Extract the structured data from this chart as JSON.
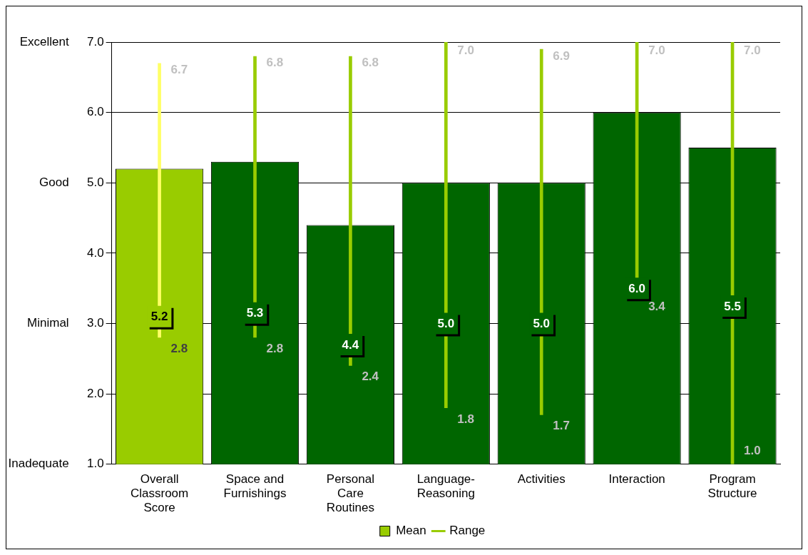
{
  "chart_data": {
    "type": "bar",
    "categories": [
      "Overall Classroom Score",
      "Space and Furnishings",
      "Personal Care Routines",
      "Language-Reasoning",
      "Activities",
      "Interaction",
      "Program Structure"
    ],
    "series": [
      {
        "name": "Mean",
        "colors": [
          "#99cc00",
          "#006600",
          "#006600",
          "#006600",
          "#006600",
          "#006600",
          "#006600"
        ],
        "values": [
          5.2,
          5.3,
          4.4,
          5.0,
          5.0,
          6.0,
          5.5
        ],
        "value_labels": [
          "5.2",
          "5.3",
          "4.4",
          "5.0",
          "5.0",
          "6.0",
          "5.5"
        ]
      },
      {
        "name": "Range",
        "colors": [
          "#ffff66",
          "#99cc00",
          "#99cc00",
          "#99cc00",
          "#99cc00",
          "#99cc00",
          "#99cc00"
        ],
        "base": [
          2.8,
          2.8,
          2.4,
          1.8,
          1.7,
          3.4,
          1.0
        ],
        "values": [
          3.9,
          4.0,
          4.4,
          5.2,
          5.2,
          3.6,
          6.0
        ]
      }
    ],
    "ylim": [
      1,
      7
    ],
    "yticks": [
      {
        "value": 1,
        "label": "1.0"
      },
      {
        "value": 2,
        "label": "2.0"
      },
      {
        "value": 3,
        "label": "3.0"
      },
      {
        "value": 4,
        "label": "4.0"
      },
      {
        "value": 5,
        "label": "5.0"
      },
      {
        "value": 6,
        "label": "6.0"
      },
      {
        "value": 7,
        "label": "7.0"
      }
    ],
    "grid": "y",
    "legend": "bottom",
    "annotations": [
      "Excellent",
      "Good",
      "Minimal",
      "Inadequate",
      {
        "text": "6.7",
        "x": "Overall Classroom Score",
        "y": 6.7
      },
      {
        "text": "2.8",
        "x": "Overall Classroom Score",
        "y": 2.8
      },
      {
        "text": "6.8",
        "x": "Space and Furnishings",
        "y": 6.8
      },
      {
        "text": "2.8",
        "x": "Space and Furnishings",
        "y": 2.8
      },
      {
        "text": "6.8",
        "x": "Personal Care Routines",
        "y": 6.8
      },
      {
        "text": "2.4",
        "x": "Personal Care Routines",
        "y": 2.4
      },
      {
        "text": "7.0",
        "x": "Language-Reasoning",
        "y": 7.0
      },
      {
        "text": "1.8",
        "x": "Language-Reasoning",
        "y": 1.8
      },
      {
        "text": "6.9",
        "x": "Activities",
        "y": 6.9
      },
      {
        "text": "1.7",
        "x": "Activities",
        "y": 1.7
      },
      {
        "text": "7.0",
        "x": "Interaction",
        "y": 7.0
      },
      {
        "text": "3.4",
        "x": "Interaction",
        "y": 3.4
      },
      {
        "text": "7.0",
        "x": "Program Structure",
        "y": 7.0
      },
      {
        "text": "1.0",
        "x": "Program Structure",
        "y": 1.0
      }
    ]
  }
}
